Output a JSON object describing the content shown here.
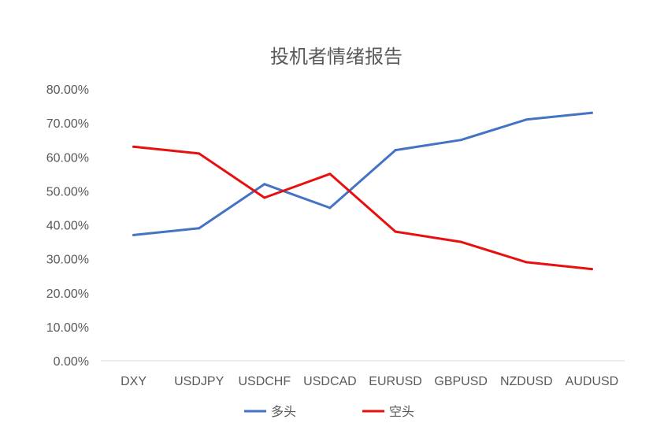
{
  "chart_data": {
    "type": "line",
    "title": "投机者情绪报告",
    "xlabel": "",
    "ylabel": "",
    "categories": [
      "DXY",
      "USDJPY",
      "USDCHF",
      "USDCAD",
      "EURUSD",
      "GBPUSD",
      "NZDUSD",
      "AUDUSD"
    ],
    "ylim": [
      0,
      80
    ],
    "y_ticks": [
      "0.00%",
      "10.00%",
      "20.00%",
      "30.00%",
      "40.00%",
      "50.00%",
      "60.00%",
      "70.00%",
      "80.00%"
    ],
    "grid": false,
    "legend_position": "bottom",
    "series": [
      {
        "name": "多头",
        "color": "#4472C4",
        "values": [
          37,
          39,
          52,
          45,
          62,
          65,
          71,
          73
        ]
      },
      {
        "name": "空头",
        "color": "#E8100F",
        "values": [
          63,
          61,
          48,
          55,
          38,
          35,
          29,
          27
        ]
      }
    ]
  }
}
